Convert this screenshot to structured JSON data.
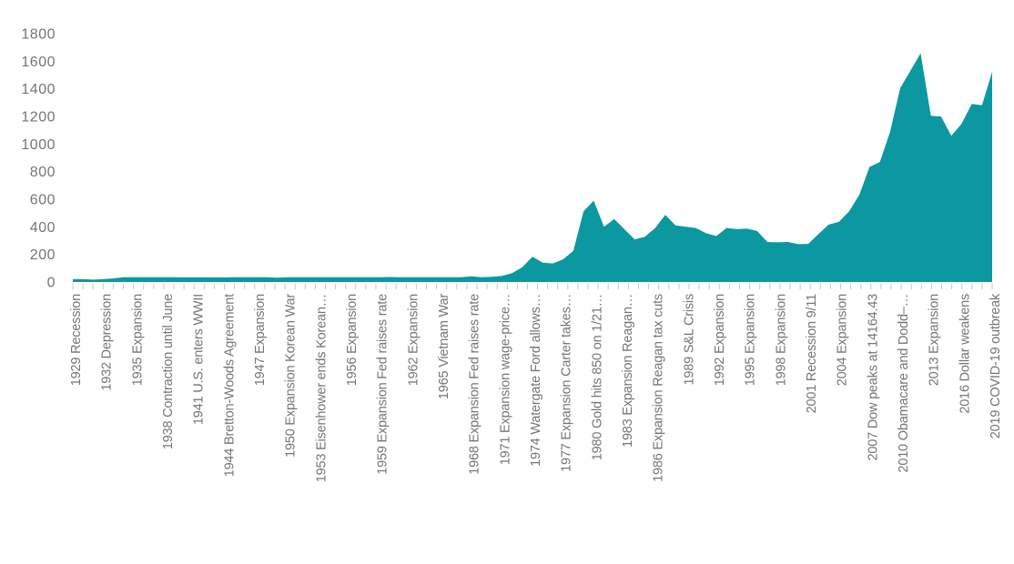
{
  "chart_data": {
    "type": "area",
    "title": "",
    "xlabel": "",
    "ylabel": "",
    "ylim": [
      0,
      1800
    ],
    "y_ticks": [
      0,
      200,
      400,
      600,
      800,
      1000,
      1200,
      1400,
      1600,
      1800
    ],
    "grid": false,
    "legend": null,
    "x_label_every": 3,
    "years": [
      1929,
      1930,
      1931,
      1932,
      1933,
      1934,
      1935,
      1936,
      1937,
      1938,
      1939,
      1940,
      1941,
      1942,
      1943,
      1944,
      1945,
      1946,
      1947,
      1948,
      1949,
      1950,
      1951,
      1952,
      1953,
      1954,
      1955,
      1956,
      1957,
      1958,
      1959,
      1960,
      1961,
      1962,
      1963,
      1964,
      1965,
      1966,
      1967,
      1968,
      1969,
      1970,
      1971,
      1972,
      1973,
      1974,
      1975,
      1976,
      1977,
      1978,
      1979,
      1980,
      1981,
      1982,
      1983,
      1984,
      1985,
      1986,
      1987,
      1988,
      1989,
      1990,
      1991,
      1992,
      1993,
      1994,
      1995,
      1996,
      1997,
      1998,
      1999,
      2000,
      2001,
      2002,
      2003,
      2004,
      2005,
      2006,
      2007,
      2008,
      2009,
      2010,
      2011,
      2012,
      2013,
      2014,
      2015,
      2016,
      2017,
      2018,
      2019
    ],
    "values": [
      20.63,
      20.65,
      17.06,
      20.69,
      26.33,
      34.69,
      34.84,
      34.87,
      34.79,
      34.85,
      34.42,
      33.85,
      33.85,
      33.85,
      33.85,
      33.85,
      34.71,
      34.71,
      34.71,
      34.71,
      31.69,
      34.72,
      34.72,
      34.6,
      34.84,
      35.04,
      35.03,
      34.99,
      34.95,
      35.1,
      35.1,
      36.5,
      35.07,
      35.08,
      35.09,
      35.1,
      35.12,
      35.13,
      34.95,
      41.1,
      35.17,
      37.44,
      43.48,
      63.91,
      106.72,
      183.85,
      140.25,
      134.5,
      164.95,
      226.0,
      512.0,
      589.75,
      400.0,
      456.9,
      382.4,
      309.0,
      327.0,
      390.9,
      486.5,
      410.15,
      401.0,
      391.0,
      353.15,
      333.0,
      391.75,
      383.25,
      387.0,
      369.25,
      290.2,
      287.8,
      290.25,
      274.45,
      276.5,
      347.2,
      416.25,
      435.6,
      513.0,
      632.0,
      833.75,
      869.75,
      1087.5,
      1405.5,
      1531.0,
      1657.5,
      1204.5,
      1199.25,
      1060.0,
      1145.9,
      1291.0,
      1281.65,
      1523.0
    ],
    "x_tick_labels": [
      "1929 Recession",
      "1932 Depression",
      "1935 Expansion",
      "1938 Contraction until June",
      "1941 U.S. enters WWII",
      "1944 Bretton-Woods Agreement",
      "1947 Expansion",
      "1950 Expansion Korean War",
      "1953 Eisenhower ends Korean…",
      "1956 Expansion",
      "1959 Expansion Fed raises rate",
      "1962 Expansion",
      "1965 Vietnam War",
      "1968 Expansion Fed raises rate",
      "1971 Expansion wage-price…",
      "1974 Watergate Ford allows…",
      "1977 Expansion Carter takes…",
      "1980 Gold hits 850 on 1/21…",
      "1983 Expansion Reagan…",
      "1986 Expansion Reagan tax cuts",
      "1989 S&L Crisis",
      "1992 Expansion",
      "1995 Expansion",
      "1998 Expansion",
      "2001 Recession 9/11",
      "2004 Expansion",
      "2007 Dow peaks at 14164.43",
      "2010 Obamacare and Dodd–…",
      "2013 Expansion",
      "2016 Dollar weakens",
      "2019 COVID-19 outbreak"
    ],
    "colors": {
      "area": "#0C98A0",
      "tick": "#C9C9C9",
      "axis_text": "#757575"
    }
  }
}
